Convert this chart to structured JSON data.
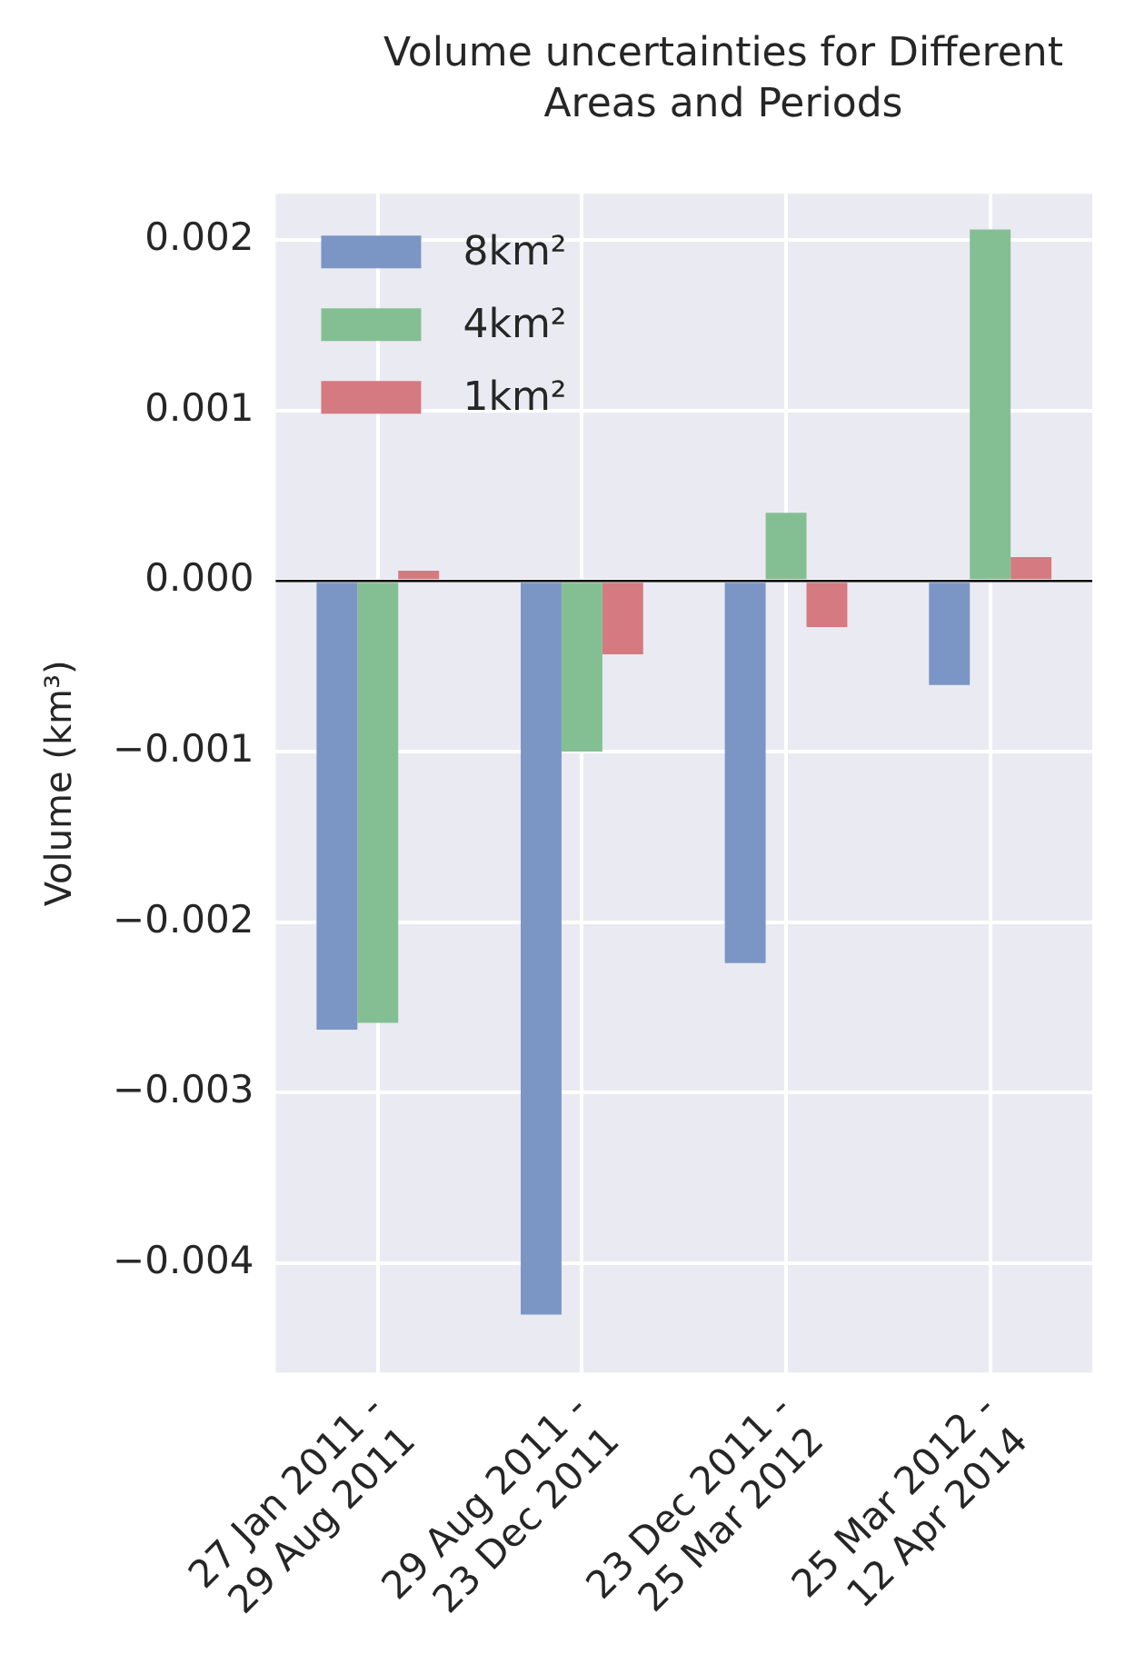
{
  "chart_data": {
    "type": "bar",
    "title": "Volume uncertainties for Different Areas and Periods",
    "ylabel": "Volume (km³)",
    "categories": [
      "27 Jan 2011 -\n29 Aug 2011",
      "29 Aug 2011 -\n23 Dec 2011",
      "23 Dec 2011 -\n25 Mar 2012",
      "25 Mar 2012 -\n12 Apr 2014"
    ],
    "series": [
      {
        "name": "8km²",
        "color": "#7b96c5",
        "values": [
          -0.00263,
          -0.0043,
          -0.00224,
          -0.00061
        ]
      },
      {
        "name": "4km²",
        "color": "#84bf93",
        "values": [
          -0.00259,
          -0.001,
          0.0004,
          0.00206
        ]
      },
      {
        "name": "1km²",
        "color": "#d47a80",
        "values": [
          6e-05,
          -0.00043,
          -0.00027,
          0.00014
        ]
      }
    ],
    "ylim": [
      -0.00464,
      0.00227
    ],
    "yticks": [
      {
        "value": -0.004,
        "label": "−0.004"
      },
      {
        "value": -0.003,
        "label": "−0.003"
      },
      {
        "value": -0.002,
        "label": "−0.002"
      },
      {
        "value": -0.001,
        "label": "−0.001"
      },
      {
        "value": 0,
        "label": "0.000"
      },
      {
        "value": 0.001,
        "label": "0.001"
      },
      {
        "value": 0.002,
        "label": "0.002"
      }
    ],
    "ref_lines": [
      {
        "axis": "y",
        "value": 0,
        "color": "#000000"
      }
    ],
    "grid": true,
    "legend": "top left"
  }
}
